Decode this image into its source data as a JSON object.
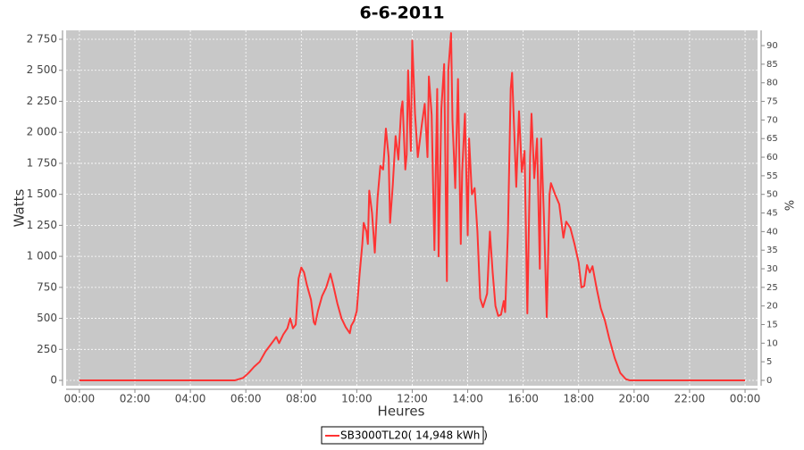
{
  "chart_data": {
    "type": "line",
    "title": "6-6-2011",
    "x_label": "Heures",
    "y_label": "Watts",
    "y2_label": "%",
    "x": [
      0,
      5.6,
      5.9,
      6.1,
      6.3,
      6.5,
      6.7,
      6.9,
      7.1,
      7.2,
      7.35,
      7.5,
      7.6,
      7.7,
      7.8,
      7.9,
      8.0,
      8.1,
      8.2,
      8.35,
      8.45,
      8.5,
      8.6,
      8.75,
      8.9,
      9.05,
      9.15,
      9.3,
      9.45,
      9.6,
      9.75,
      9.8,
      9.9,
      10.0,
      10.1,
      10.2,
      10.25,
      10.35,
      10.4,
      10.45,
      10.55,
      10.65,
      10.75,
      10.85,
      10.95,
      11.05,
      11.15,
      11.2,
      11.3,
      11.4,
      11.5,
      11.6,
      11.65,
      11.75,
      11.8,
      11.85,
      11.95,
      12.0,
      12.1,
      12.2,
      12.35,
      12.45,
      12.55,
      12.6,
      12.7,
      12.8,
      12.9,
      12.95,
      13.05,
      13.15,
      13.25,
      13.3,
      13.4,
      13.45,
      13.55,
      13.65,
      13.75,
      13.8,
      13.9,
      14.0,
      14.05,
      14.15,
      14.25,
      14.35,
      14.45,
      14.55,
      14.7,
      14.8,
      14.9,
      15.0,
      15.1,
      15.2,
      15.3,
      15.35,
      15.45,
      15.55,
      15.6,
      15.65,
      15.75,
      15.85,
      15.95,
      16.05,
      16.15,
      16.25,
      16.3,
      16.4,
      16.5,
      16.6,
      16.65,
      16.75,
      16.85,
      16.95,
      17.0,
      17.15,
      17.3,
      17.45,
      17.55,
      17.7,
      17.85,
      18.0,
      18.1,
      18.2,
      18.3,
      18.4,
      18.5,
      18.65,
      18.8,
      18.95,
      19.1,
      19.3,
      19.5,
      19.7,
      19.85,
      24
    ],
    "series": [
      {
        "name": "SB3000TL20( 14,948 kWh )",
        "color": "#ff3333",
        "values": [
          0,
          0,
          20,
          60,
          110,
          150,
          230,
          290,
          350,
          300,
          370,
          420,
          500,
          420,
          450,
          820,
          910,
          870,
          770,
          650,
          470,
          450,
          560,
          680,
          750,
          860,
          770,
          620,
          500,
          430,
          380,
          440,
          480,
          560,
          850,
          1100,
          1270,
          1200,
          1100,
          1530,
          1350,
          1030,
          1470,
          1730,
          1700,
          2030,
          1800,
          1270,
          1580,
          1970,
          1780,
          2180,
          2250,
          1700,
          1820,
          2500,
          1850,
          2740,
          2150,
          1800,
          2070,
          2230,
          1800,
          2450,
          2140,
          1050,
          2350,
          1000,
          2190,
          2550,
          800,
          2500,
          2800,
          2100,
          1550,
          2430,
          1100,
          1680,
          2150,
          1170,
          1950,
          1500,
          1550,
          1200,
          660,
          590,
          700,
          1200,
          870,
          600,
          520,
          530,
          640,
          550,
          1200,
          2350,
          2480,
          2170,
          1560,
          2170,
          1680,
          1850,
          540,
          1800,
          2150,
          1630,
          1950,
          900,
          1950,
          1300,
          510,
          1500,
          1590,
          1500,
          1420,
          1150,
          1280,
          1230,
          1100,
          950,
          750,
          760,
          930,
          870,
          920,
          740,
          580,
          480,
          340,
          180,
          60,
          10,
          0,
          0
        ]
      }
    ],
    "xlim": [
      -0.48,
      24.45
    ],
    "xticks": [
      {
        "value": 0,
        "label": "00:00"
      },
      {
        "value": 2,
        "label": "02:00"
      },
      {
        "value": 4,
        "label": "04:00"
      },
      {
        "value": 6,
        "label": "06:00"
      },
      {
        "value": 8,
        "label": "08:00"
      },
      {
        "value": 10,
        "label": "10:00"
      },
      {
        "value": 12,
        "label": "12:00"
      },
      {
        "value": 14,
        "label": "14:00"
      },
      {
        "value": 16,
        "label": "16:00"
      },
      {
        "value": 18,
        "label": "18:00"
      },
      {
        "value": 20,
        "label": "20:00"
      },
      {
        "value": 22,
        "label": "22:00"
      },
      {
        "value": 24,
        "label": "00:00"
      }
    ],
    "ylim": [
      -43,
      2822
    ],
    "yticks": [
      0,
      250,
      500,
      750,
      {
        "value": 1000,
        "label": "1 000"
      },
      {
        "value": 1250,
        "label": "1 250"
      },
      {
        "value": 1500,
        "label": "1 500"
      },
      {
        "value": 1750,
        "label": "1 750"
      },
      {
        "value": 2000,
        "label": "2 000"
      },
      {
        "value": 2250,
        "label": "2 250"
      },
      {
        "value": 2500,
        "label": "2 500"
      },
      {
        "value": 2750,
        "label": "2 750"
      }
    ],
    "y2lim": [
      -1.44,
      94.1
    ],
    "y2ticks": [
      0,
      5,
      10,
      15,
      20,
      25,
      30,
      35,
      40,
      45,
      50,
      55,
      60,
      65,
      70,
      75,
      80,
      85,
      90
    ],
    "grid": true
  }
}
